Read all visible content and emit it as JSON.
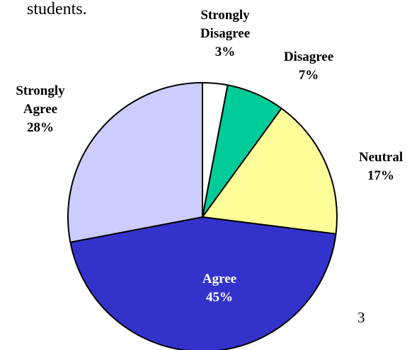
{
  "caption": "students.",
  "page_number": "3",
  "chart_data": {
    "type": "pie",
    "title": "",
    "slices": [
      {
        "label": "Strongly Disagree",
        "label_lines": [
          "Strongly",
          "Disagree"
        ],
        "value": 3,
        "value_label": "3%",
        "color": "#ffffff"
      },
      {
        "label": "Disagree",
        "label_lines": [
          "Disagree"
        ],
        "value": 7,
        "value_label": "7%",
        "color": "#00cc99"
      },
      {
        "label": "Neutral",
        "label_lines": [
          "Neutral"
        ],
        "value": 17,
        "value_label": "17%",
        "color": "#ffff99"
      },
      {
        "label": "Agree",
        "label_lines": [
          "Agree"
        ],
        "value": 45,
        "value_label": "45%",
        "color": "#3333cc"
      },
      {
        "label": "Strongly Agree",
        "label_lines": [
          "Strongly",
          "Agree"
        ],
        "value": 28,
        "value_label": "28%",
        "color": "#ccccff"
      }
    ],
    "start_angle_deg": 0,
    "direction": "clockwise",
    "legend": "none"
  }
}
